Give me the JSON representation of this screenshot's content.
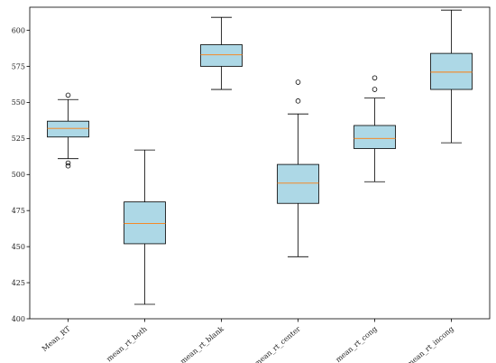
{
  "chart_data": {
    "type": "box",
    "y_ticks": [
      400,
      425,
      450,
      475,
      500,
      525,
      550,
      575,
      600
    ],
    "ylim": [
      400,
      616
    ],
    "grid": false,
    "colors": {
      "box_fill": "#add8e6",
      "median": "#ff7f0e",
      "edge": "#000000"
    },
    "series": [
      {
        "label": "Mean_RT",
        "whisker_low": 511,
        "q1": 526,
        "median": 532,
        "q3": 537,
        "whisker_high": 552,
        "outliers": [
          555,
          508,
          506
        ]
      },
      {
        "label": "mean_rt_both",
        "whisker_low": 410,
        "q1": 452,
        "median": 466,
        "q3": 481,
        "whisker_high": 517,
        "outliers": []
      },
      {
        "label": "mean_rt_blank",
        "whisker_low": 559,
        "q1": 575,
        "median": 583,
        "q3": 590,
        "whisker_high": 609,
        "outliers": []
      },
      {
        "label": "mean_rt_center",
        "whisker_low": 443,
        "q1": 480,
        "median": 494,
        "q3": 507,
        "whisker_high": 542,
        "outliers": [
          564,
          551
        ]
      },
      {
        "label": "mean_rt_cong",
        "whisker_low": 495,
        "q1": 518,
        "median": 525,
        "q3": 534,
        "whisker_high": 553,
        "outliers": [
          567,
          559
        ]
      },
      {
        "label": "mean_rt_incong",
        "whisker_low": 522,
        "q1": 559,
        "median": 571,
        "q3": 584,
        "whisker_high": 614,
        "outliers": []
      }
    ]
  }
}
